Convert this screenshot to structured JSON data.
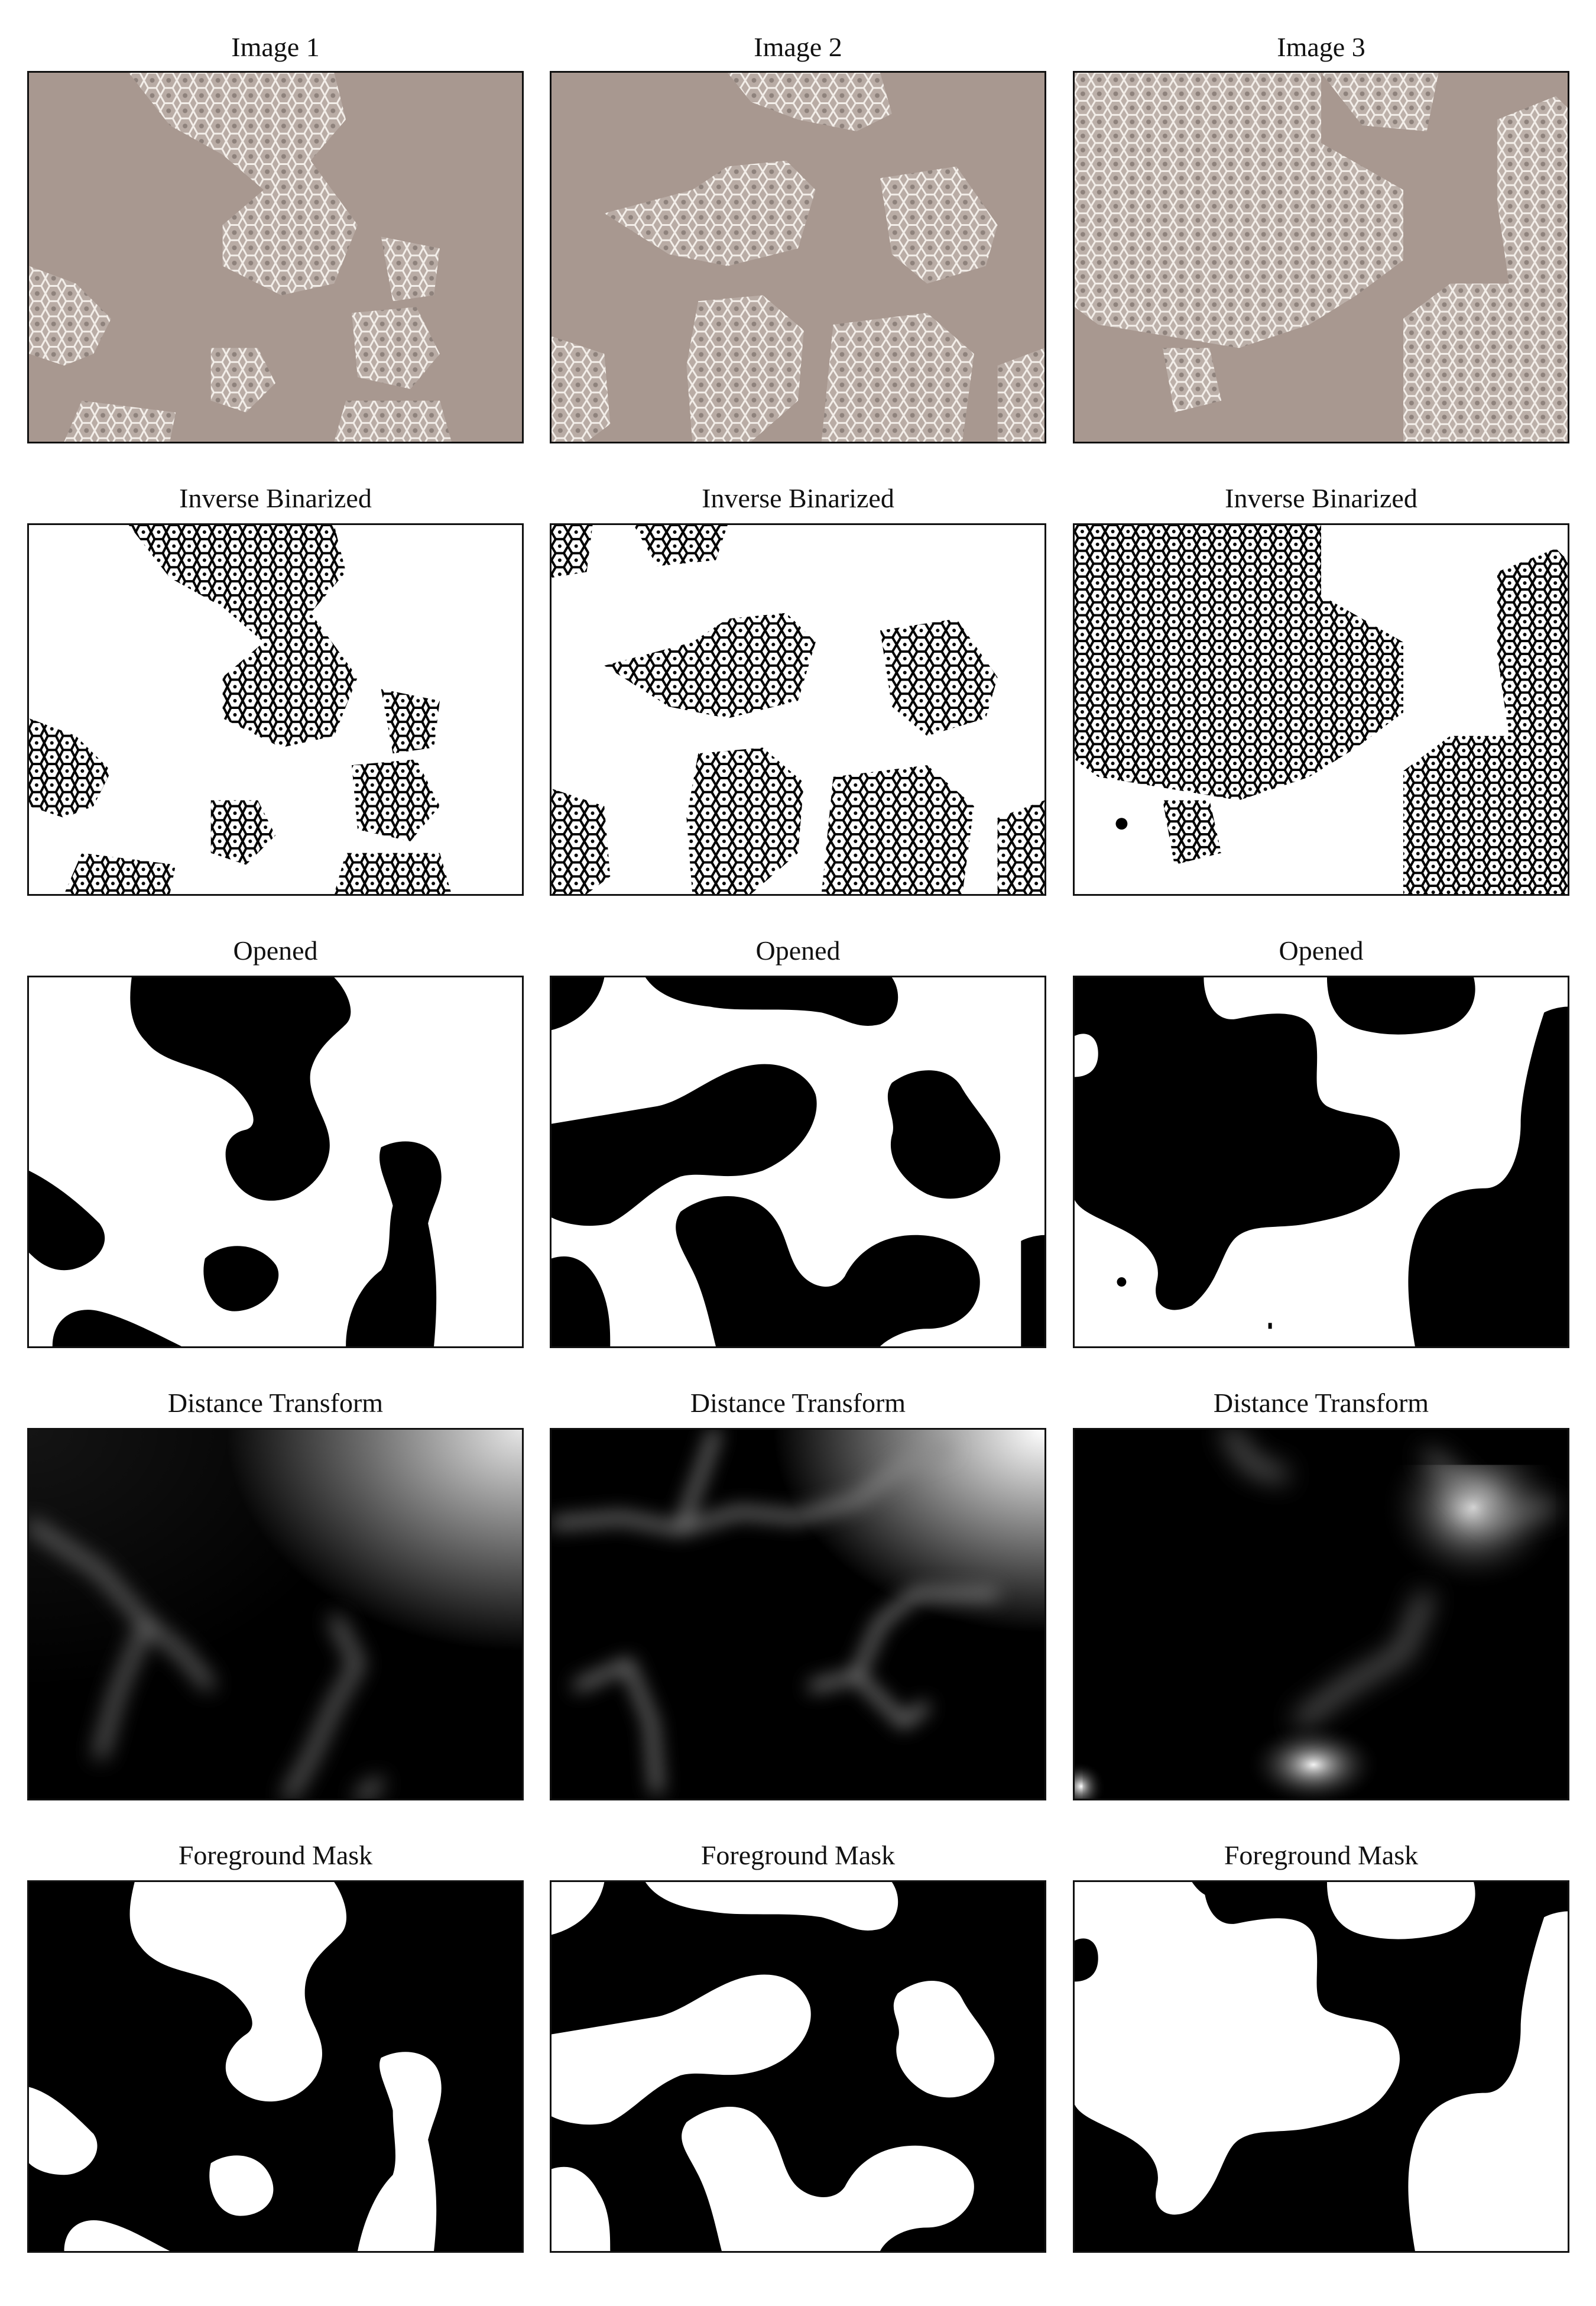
{
  "figure": {
    "columns": [
      "Image 1",
      "Image 2",
      "Image 3"
    ],
    "rows": [
      {
        "stage": "original",
        "titles": [
          "Image 1",
          "Image 2",
          "Image 3"
        ]
      },
      {
        "stage": "inverse-binarized",
        "titles": [
          "Inverse Binarized",
          "Inverse Binarized",
          "Inverse Binarized"
        ]
      },
      {
        "stage": "opened",
        "titles": [
          "Opened",
          "Opened",
          "Opened"
        ]
      },
      {
        "stage": "distance-transform",
        "titles": [
          "Distance Transform",
          "Distance Transform",
          "Distance Transform"
        ]
      },
      {
        "stage": "foreground-mask",
        "titles": [
          "Foreground Mask",
          "Foreground Mask",
          "Foreground Mask"
        ]
      }
    ]
  },
  "colors": {
    "micrograph_background": "#a89890",
    "cell_membrane": "#f2ece6",
    "mask_black": "#000000",
    "mask_white": "#ffffff",
    "panel_border": "#111111"
  }
}
